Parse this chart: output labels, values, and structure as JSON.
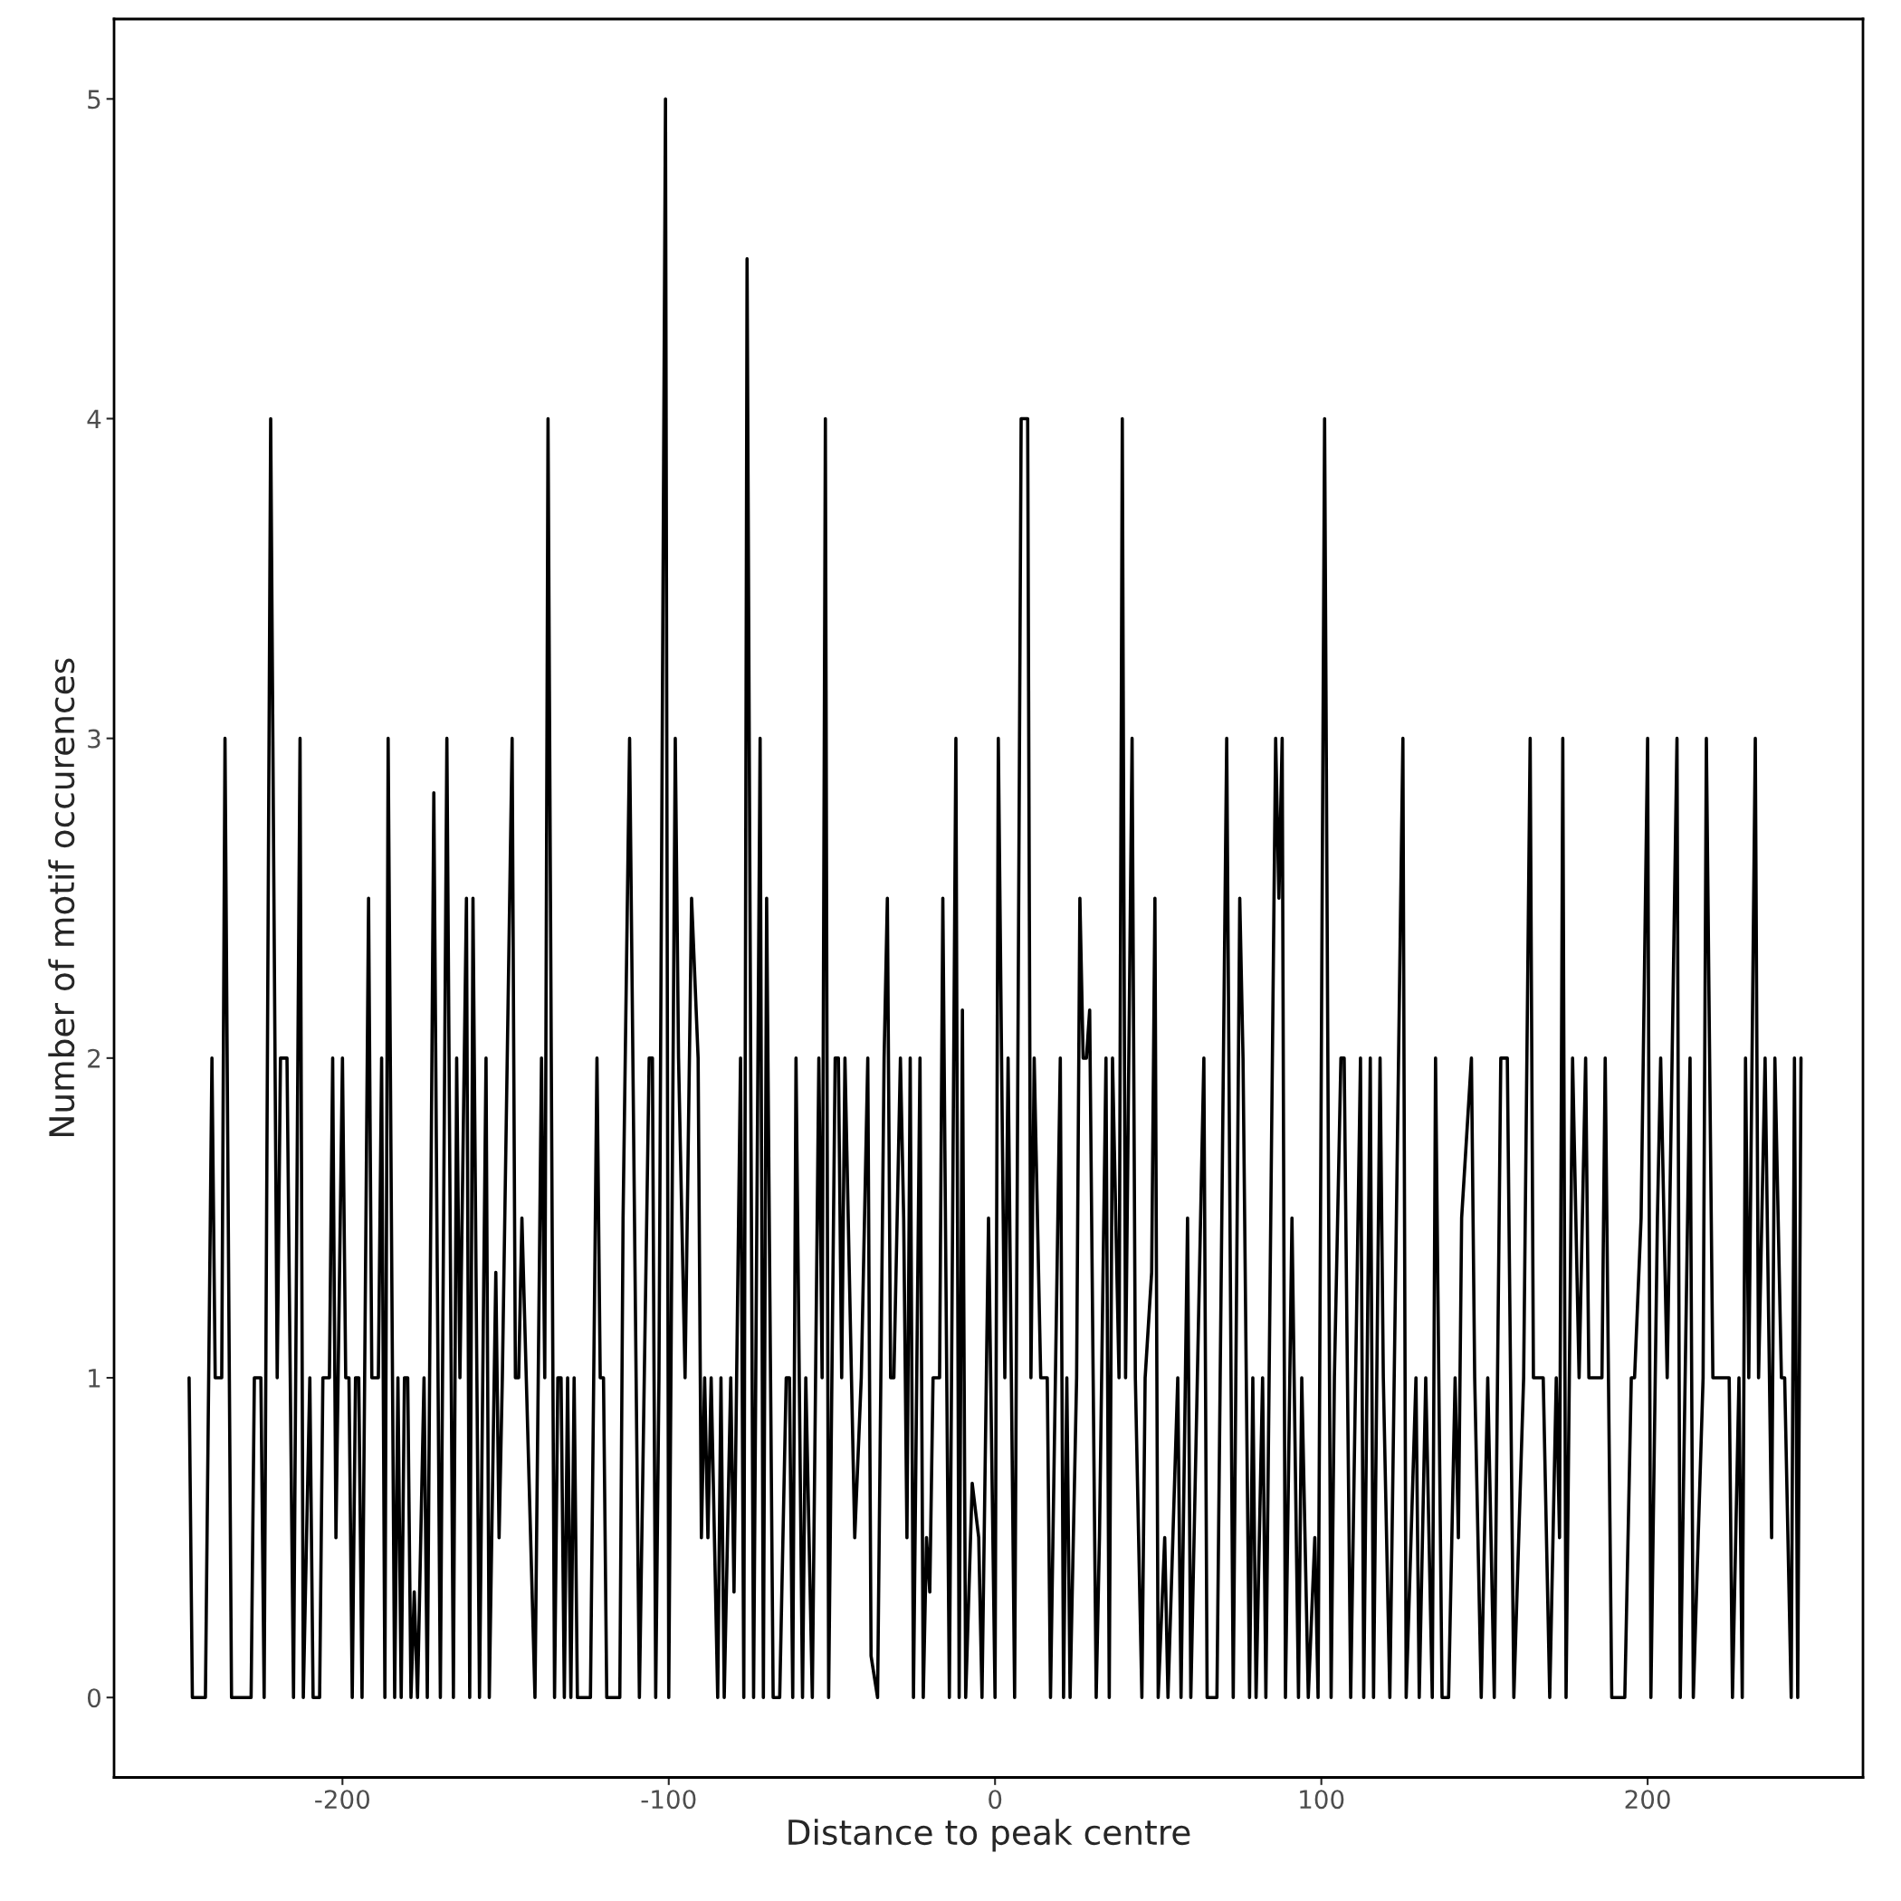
{
  "chart_data": {
    "type": "line",
    "xlabel": "Distance to peak centre",
    "ylabel": "Number of motif occurences",
    "xlim": [
      -270,
      266
    ],
    "ylim": [
      -0.25,
      5.25
    ],
    "xticks": [
      -200,
      -100,
      0,
      100,
      200
    ],
    "yticks": [
      0,
      1,
      2,
      3,
      4,
      5
    ],
    "grid": false,
    "marker": "none",
    "line_style": "solid",
    "series": [
      {
        "color": "#000000",
        "x": [
          -247,
          -246,
          -242,
          -240,
          -239,
          -237,
          -236,
          -234,
          -228,
          -227,
          -225,
          -224,
          -222,
          -220,
          -219,
          -217,
          -215,
          -213,
          -212,
          -210,
          -209,
          -207,
          -206,
          -204,
          -203,
          -202,
          -200,
          -199,
          -198,
          -197,
          -196,
          -195,
          -194,
          -192,
          -191,
          -189,
          -188,
          -187,
          -186,
          -184,
          -183,
          -182,
          -181,
          -180,
          -179,
          -178,
          -177,
          -175,
          -174,
          -172,
          -170,
          -168,
          -166,
          -165,
          -164,
          -162,
          -161,
          -160,
          -158,
          -156,
          -155,
          -153,
          -152,
          -151,
          -148,
          -147,
          -146,
          -145,
          -141,
          -139,
          -138,
          -137,
          -135,
          -134,
          -133,
          -132,
          -131,
          -130,
          -129,
          -128,
          -124,
          -122,
          -121,
          -120,
          -119,
          -115,
          -114,
          -112,
          -110,
          -109,
          -106,
          -105,
          -104,
          -103,
          -101,
          -100,
          -98,
          -97,
          -95,
          -93,
          -91,
          -90,
          -89,
          -88,
          -87,
          -85,
          -84,
          -83,
          -81,
          -80,
          -78,
          -77,
          -76,
          -74,
          -72,
          -71,
          -70,
          -68,
          -66,
          -64,
          -63,
          -62,
          -61,
          -59,
          -58,
          -56,
          -54,
          -53,
          -52,
          -51,
          -49,
          -48,
          -47,
          -46,
          -44,
          -43,
          -41,
          -39,
          -38,
          -36,
          -34,
          -33,
          -32,
          -31,
          -29,
          -28,
          -27,
          -26,
          -25,
          -23,
          -22,
          -21,
          -20,
          -19,
          -17,
          -16,
          -14,
          -12,
          -11,
          -10,
          -9,
          -7,
          -5,
          -4,
          -2,
          0,
          1,
          3,
          4,
          6,
          7,
          8,
          10,
          11,
          12,
          14,
          16,
          17,
          20,
          21,
          22,
          23,
          25,
          26,
          27,
          28,
          29,
          31,
          32,
          34,
          35,
          36,
          38,
          39,
          40,
          42,
          43,
          45,
          46,
          48,
          49,
          50,
          52,
          53,
          56,
          57,
          59,
          60,
          62,
          64,
          65,
          68,
          71,
          73,
          75,
          76,
          78,
          79,
          80,
          82,
          83,
          86,
          87,
          88,
          89,
          91,
          93,
          94,
          96,
          98,
          99,
          101,
          103,
          104,
          106,
          107,
          109,
          112,
          113,
          115,
          116,
          118,
          119,
          121,
          125,
          126,
          129,
          130,
          132,
          134,
          135,
          137,
          139,
          141,
          142,
          143,
          146,
          147,
          149,
          151,
          153,
          155,
          157,
          159,
          162,
          164,
          165,
          168,
          170,
          172,
          173,
          174,
          175,
          177,
          179,
          181,
          182,
          186,
          187,
          189,
          193,
          195,
          196,
          198,
          200,
          201,
          203,
          204,
          206,
          209,
          210,
          213,
          214,
          217,
          218,
          220,
          225,
          226,
          228,
          229,
          230,
          231,
          233,
          234,
          236,
          238,
          239,
          241,
          242,
          244,
          245,
          246,
          247
        ],
        "values": [
          1,
          0,
          0,
          2,
          1,
          1,
          3,
          0,
          0,
          1,
          1,
          0,
          4,
          1,
          2,
          2,
          0,
          3,
          0,
          1,
          0,
          0,
          1,
          1,
          2,
          0.5,
          2,
          1,
          1,
          0,
          1,
          1,
          0,
          2.5,
          1,
          1,
          2,
          0,
          3,
          0,
          1,
          0,
          1,
          1,
          0,
          0.33,
          0,
          1,
          0,
          2.83,
          0,
          3,
          0,
          2,
          1,
          2.5,
          0,
          2.5,
          0,
          2,
          0,
          1.33,
          0.5,
          1,
          3,
          1,
          1,
          1.5,
          0,
          2,
          1,
          4,
          0,
          1,
          1,
          0,
          1,
          0,
          1,
          0,
          0,
          2,
          1,
          1,
          0,
          0,
          1.5,
          3,
          1,
          0,
          2,
          2,
          0,
          1,
          5,
          0,
          3,
          2,
          1,
          2.5,
          2,
          0.5,
          1,
          0.5,
          1,
          0,
          1,
          0,
          1,
          0.33,
          2,
          0,
          4.5,
          0,
          3,
          0,
          2.5,
          0,
          0,
          1,
          1,
          0,
          2,
          0,
          1,
          0,
          2,
          1,
          4,
          0,
          2,
          2,
          1,
          2,
          1,
          0.5,
          1,
          2,
          0.13,
          0,
          2,
          2.5,
          1,
          1,
          2,
          1.5,
          0.5,
          2,
          0,
          2,
          0,
          0.5,
          0.33,
          1,
          1,
          2.5,
          0,
          3,
          0,
          2.15,
          0,
          0.67,
          0.5,
          0,
          1.5,
          0,
          3,
          1,
          2,
          0,
          2,
          4,
          4,
          1,
          2,
          1,
          1,
          0,
          2,
          0,
          1,
          0,
          1,
          2.5,
          2,
          2,
          2.15,
          0,
          0.5,
          2,
          0,
          2,
          1,
          4,
          1,
          3,
          1,
          0,
          1,
          1.33,
          2.5,
          0,
          0.5,
          0,
          1,
          0,
          1.5,
          0,
          1,
          2,
          0,
          0,
          3,
          0,
          2.5,
          2,
          0,
          1,
          0,
          1,
          0,
          3,
          2.5,
          3,
          0,
          1.5,
          0,
          1,
          0,
          0.5,
          0,
          4,
          0,
          1,
          2,
          2,
          0,
          2,
          0,
          2,
          0,
          2,
          1,
          0,
          3,
          0,
          1,
          0,
          1,
          0,
          2,
          0,
          0,
          1,
          0.5,
          1.5,
          2,
          1,
          0,
          1,
          0,
          2,
          2,
          0,
          1,
          3,
          1,
          1,
          0,
          1,
          0.5,
          3,
          0,
          2,
          1,
          2,
          1,
          1,
          2,
          0,
          0,
          1,
          1,
          1.5,
          3,
          0,
          1.5,
          2,
          1,
          3,
          0,
          2,
          0,
          1,
          3,
          1,
          1,
          0,
          1,
          0,
          2,
          1,
          3,
          1,
          2,
          0.5,
          2,
          1,
          1,
          0,
          2,
          0,
          2
        ]
      }
    ]
  }
}
